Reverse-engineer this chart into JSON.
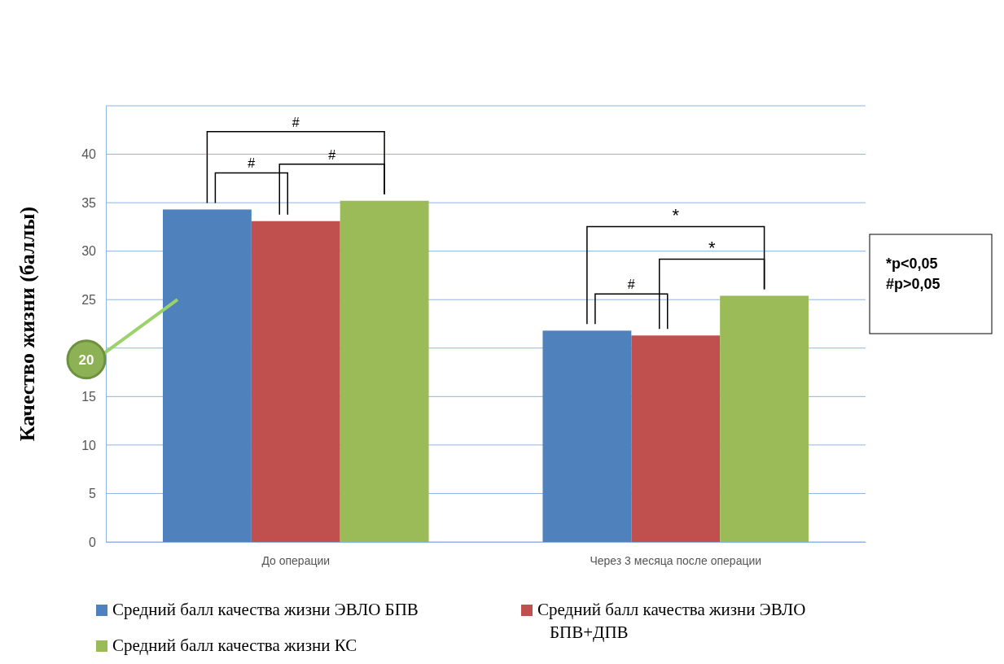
{
  "chart_data": {
    "type": "bar",
    "ylabel": "Качество жизни (баллы)",
    "categories": [
      "До операции",
      "Через 3 месяца после операции"
    ],
    "series": [
      {
        "name": "Средний балл качества жизни ЭВЛО БПВ",
        "color": "#4f81bd",
        "values": [
          34.3,
          21.8
        ]
      },
      {
        "name": "Средний балл качества жизни ЭВЛО БПВ+ДПВ",
        "color": "#c0504d",
        "values": [
          33.1,
          21.3
        ]
      },
      {
        "name": "Средний балл качества жизни КС",
        "color": "#9bbb59",
        "values": [
          35.2,
          25.4
        ]
      }
    ],
    "ylim": [
      0,
      45
    ],
    "yticks": [
      0,
      5,
      10,
      15,
      {
        "value": 20,
        "label": null
      },
      25,
      30,
      35,
      40
    ],
    "grid": "y",
    "legend": "bottom",
    "annotations": [
      "#",
      "#",
      "#",
      "*",
      "#",
      "*",
      "20",
      "*p<0,05",
      "#p>0,05"
    ]
  }
}
